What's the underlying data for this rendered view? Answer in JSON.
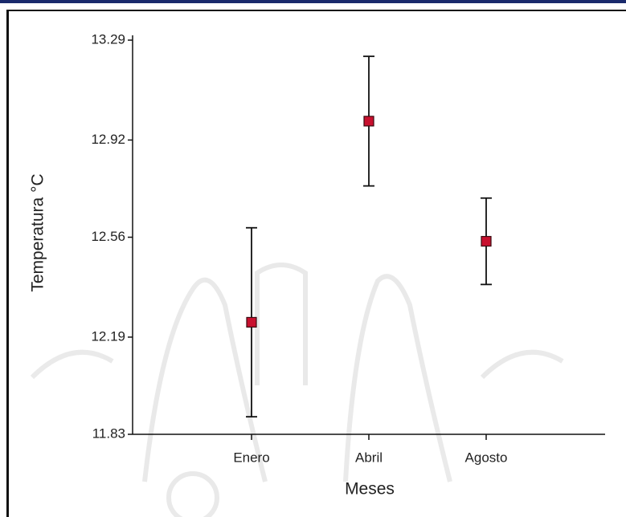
{
  "chart_data": {
    "type": "errorbar",
    "x_label": "Meses",
    "y_label": "Temperatura °C",
    "categories": [
      "Enero",
      "Abril",
      "Agosto"
    ],
    "values": [
      12.245,
      12.99,
      12.545
    ],
    "errors": [
      0.35,
      0.24,
      0.16
    ],
    "color": "#c8102e",
    "ylim": [
      11.83,
      13.29
    ],
    "yticks": [
      11.83,
      12.19,
      12.56,
      12.92,
      13.29
    ]
  }
}
